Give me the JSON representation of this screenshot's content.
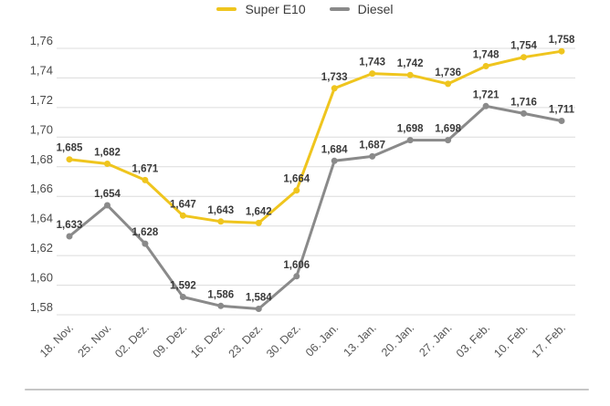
{
  "legend": {
    "items": [
      {
        "label": "Super E10",
        "color": "#EFC51E"
      },
      {
        "label": "Diesel",
        "color": "#8A8A8A"
      }
    ]
  },
  "chart_data": {
    "type": "line",
    "title": "",
    "xlabel": "",
    "ylabel": "",
    "categories": [
      "18. Nov.",
      "25. Nov.",
      "02. Dez.",
      "09. Dez.",
      "16. Dez.",
      "23. Dez.",
      "30. Dez.",
      "06. Jan.",
      "13. Jan.",
      "20. Jan.",
      "27. Jan.",
      "03. Feb.",
      "10. Feb.",
      "17. Feb."
    ],
    "series": [
      {
        "name": "Super E10",
        "color": "#EFC51E",
        "values": [
          1.685,
          1.682,
          1.671,
          1.647,
          1.643,
          1.642,
          1.664,
          1.733,
          1.743,
          1.742,
          1.736,
          1.748,
          1.754,
          1.758
        ],
        "point_labels": [
          "1,685",
          "1,682",
          "1,671",
          "1,647",
          "1,643",
          "1,642",
          "1,664",
          "1,733",
          "1,743",
          "1,742",
          "1,736",
          "1,748",
          "1,754",
          "1,758"
        ]
      },
      {
        "name": "Diesel",
        "color": "#8A8A8A",
        "values": [
          1.633,
          1.654,
          1.628,
          1.592,
          1.586,
          1.584,
          1.606,
          1.684,
          1.687,
          1.698,
          1.698,
          1.721,
          1.716,
          1.711
        ],
        "point_labels": [
          "1,633",
          "1,654",
          "1,628",
          "1,592",
          "1,586",
          "1,584",
          "1,606",
          "1,684",
          "1,687",
          "1,698",
          "1,698",
          "1,721",
          "1,716",
          "1,711"
        ]
      }
    ],
    "ylim": [
      1.58,
      1.76
    ],
    "y_ticks": [
      {
        "value": 1.58,
        "label": "1,58"
      },
      {
        "value": 1.6,
        "label": "1,60"
      },
      {
        "value": 1.62,
        "label": "1,62"
      },
      {
        "value": 1.64,
        "label": "1,64"
      },
      {
        "value": 1.66,
        "label": "1,66"
      },
      {
        "value": 1.68,
        "label": "1,68"
      },
      {
        "value": 1.7,
        "label": "1,70"
      },
      {
        "value": 1.72,
        "label": "1,72"
      },
      {
        "value": 1.74,
        "label": "1,74"
      },
      {
        "value": 1.76,
        "label": "1,76"
      }
    ],
    "grid": "horizontal",
    "legend_position": "top center",
    "x_tick_rotation": -45
  }
}
